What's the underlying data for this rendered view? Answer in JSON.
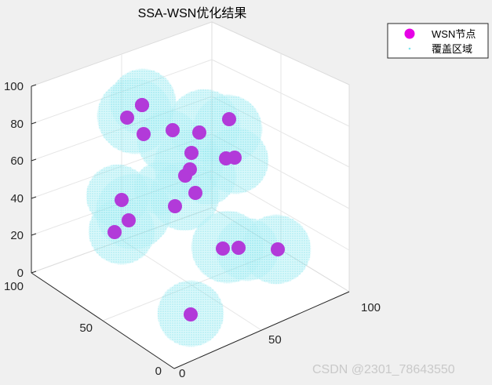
{
  "chart_data": {
    "type": "scatter",
    "title": "SSA-WSN优化结果",
    "xlim": [
      0,
      100
    ],
    "ylim": [
      0,
      100
    ],
    "zlim": [
      0,
      100
    ],
    "x_ticks": [
      "0",
      "50",
      "100"
    ],
    "y_ticks": [
      "0",
      "50",
      "100"
    ],
    "z_ticks": [
      "0",
      "20",
      "40",
      "60",
      "80",
      "100"
    ],
    "grid": true,
    "legend_position": "top-right",
    "series": [
      {
        "name": "WSN节点",
        "color": "#e600e6",
        "marker": "filled-circle"
      },
      {
        "name": "覆盖区域",
        "color": "#7fe6ee",
        "marker": "point-cloud"
      }
    ],
    "nodes_screen_order": [
      {
        "id": 1
      },
      {
        "id": 2
      },
      {
        "id": 3
      },
      {
        "id": 4
      },
      {
        "id": 5
      },
      {
        "id": 6
      },
      {
        "id": 7
      },
      {
        "id": 8
      },
      {
        "id": 9
      },
      {
        "id": 10
      },
      {
        "id": 11
      },
      {
        "id": 12
      },
      {
        "id": 13
      },
      {
        "id": 14
      },
      {
        "id": 15
      },
      {
        "id": 16
      },
      {
        "id": 17
      },
      {
        "id": 18
      },
      {
        "id": 19
      },
      {
        "id": 20
      },
      {
        "id": 21
      }
    ]
  },
  "colors": {
    "node_fill": "#b23ad9",
    "node_legend": "#e600e6",
    "coverage": "#7fe6ee"
  },
  "watermark": "CSDN @2301_78643550"
}
